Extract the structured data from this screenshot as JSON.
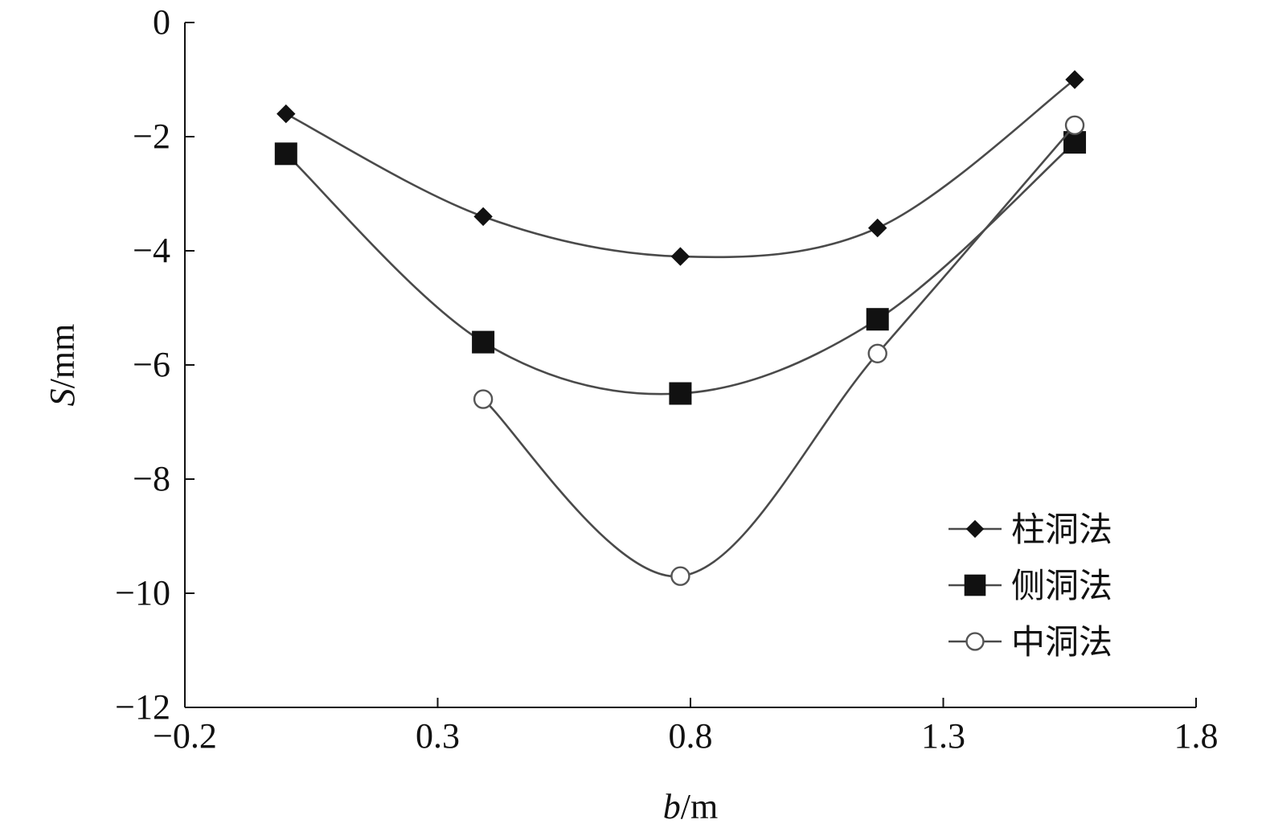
{
  "chart_data": {
    "type": "line",
    "xlabel": "b/m",
    "ylabel": "S/mm",
    "xlabel_var": "b",
    "xlabel_unit": "/m",
    "ylabel_var": "S",
    "ylabel_unit": "/mm",
    "xlim": [
      -0.2,
      1.8
    ],
    "ylim": [
      -12,
      0
    ],
    "xticks": [
      "−0.2",
      "0.3",
      "0.8",
      "1.3",
      "1.8"
    ],
    "yticks": [
      "0",
      "−2",
      "−4",
      "−6",
      "−8",
      "−10",
      "−12"
    ],
    "grid": false,
    "legend_position": "bottom-right",
    "series": [
      {
        "name": "柱洞法",
        "marker": "diamond",
        "color": "#111111",
        "x": [
          0.0,
          0.39,
          0.78,
          1.17,
          1.56
        ],
        "y": [
          -1.6,
          -3.4,
          -4.1,
          -3.6,
          -1.0
        ]
      },
      {
        "name": "侧洞法",
        "marker": "square",
        "color": "#111111",
        "x": [
          0.0,
          0.39,
          0.78,
          1.17,
          1.56
        ],
        "y": [
          -2.3,
          -5.6,
          -6.5,
          -5.2,
          -2.1
        ]
      },
      {
        "name": "中洞法",
        "marker": "circle",
        "color": "#555555",
        "x": [
          0.39,
          0.78,
          1.17,
          1.56
        ],
        "y": [
          -6.6,
          -9.7,
          -5.8,
          -1.8
        ]
      }
    ]
  }
}
